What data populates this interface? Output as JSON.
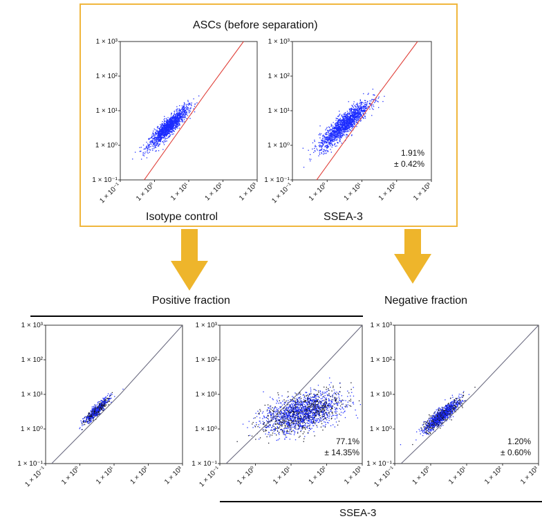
{
  "colors": {
    "frame": "#f0b63c",
    "arrow": "#eeb52b",
    "gate_top": "#e0413a",
    "gate_bottom": "#6b6b80",
    "dots_blue": "#1c2cff",
    "dots_dark": "#141423"
  },
  "labels": {
    "top_title": "ASCs (before separation)",
    "isotype": "Isotype control",
    "ssea3_top": "SSEA-3",
    "positive": "Positive fraction",
    "negative": "Negative fraction",
    "ssea3_bottom": "SSEA-3"
  },
  "ticks": [
    "1 × 10⁻¹",
    "1 × 10⁰",
    "1 × 10¹",
    "1 × 10²",
    "1 × 10³"
  ],
  "chart_data": [
    {
      "id": "top-isotype",
      "type": "scatter",
      "title": "ASCs (before separation)",
      "xlabel": "Isotype control",
      "xscale": "log",
      "yscale": "log",
      "xlim": [
        0.1,
        1000
      ],
      "ylim": [
        0.1,
        1000
      ],
      "gate": [
        [
          0.5,
          0.1
        ],
        [
          30,
          30
        ],
        [
          400,
          1000
        ]
      ],
      "populations": [
        {
          "cx": 2.5,
          "cy": 3.5,
          "spread": 0.28,
          "tilt": 0.9,
          "n": 1500
        }
      ]
    },
    {
      "id": "top-ssea3",
      "type": "scatter",
      "xlabel": "SSEA-3",
      "xscale": "log",
      "yscale": "log",
      "xlim": [
        0.1,
        1000
      ],
      "ylim": [
        0.1,
        1000
      ],
      "gate": [
        [
          0.5,
          0.1
        ],
        [
          30,
          30
        ],
        [
          400,
          1000
        ]
      ],
      "populations": [
        {
          "cx": 3.0,
          "cy": 4.0,
          "spread": 0.35,
          "tilt": 0.85,
          "n": 1600
        }
      ],
      "annotation": [
        "1.91%",
        "± 0.42%"
      ]
    },
    {
      "id": "bottom-positive-isotype",
      "type": "scatter",
      "xscale": "log",
      "yscale": "log",
      "xlim": [
        0.1,
        1000
      ],
      "ylim": [
        0.1,
        1000
      ],
      "gate": [
        [
          0.15,
          0.1
        ],
        [
          15,
          10
        ],
        [
          1000,
          1000
        ]
      ],
      "populations": [
        {
          "cx": 3.0,
          "cy": 3.5,
          "spread": 0.18,
          "tilt": 0.9,
          "n": 700
        }
      ]
    },
    {
      "id": "bottom-positive-ssea3",
      "type": "scatter",
      "xscale": "log",
      "yscale": "log",
      "xlim": [
        0.1,
        1000
      ],
      "ylim": [
        0.1,
        1000
      ],
      "gate": [
        [
          0.15,
          0.1
        ],
        [
          15,
          10
        ],
        [
          1000,
          1000
        ]
      ],
      "populations": [
        {
          "cx": 20,
          "cy": 3.0,
          "spread": 0.55,
          "tilt": 0.25,
          "n": 2000
        }
      ],
      "annotation": [
        "77.1%",
        "± 14.35%"
      ]
    },
    {
      "id": "bottom-negative-ssea3",
      "type": "scatter",
      "xscale": "log",
      "yscale": "log",
      "xlim": [
        0.1,
        1000
      ],
      "ylim": [
        0.1,
        1000
      ],
      "gate": [
        [
          0.15,
          0.1
        ],
        [
          15,
          10
        ],
        [
          1000,
          1000
        ]
      ],
      "populations": [
        {
          "cx": 2.0,
          "cy": 2.5,
          "spread": 0.24,
          "tilt": 0.8,
          "n": 1300
        }
      ],
      "annotation": [
        "1.20%",
        "± 0.60%"
      ]
    }
  ]
}
